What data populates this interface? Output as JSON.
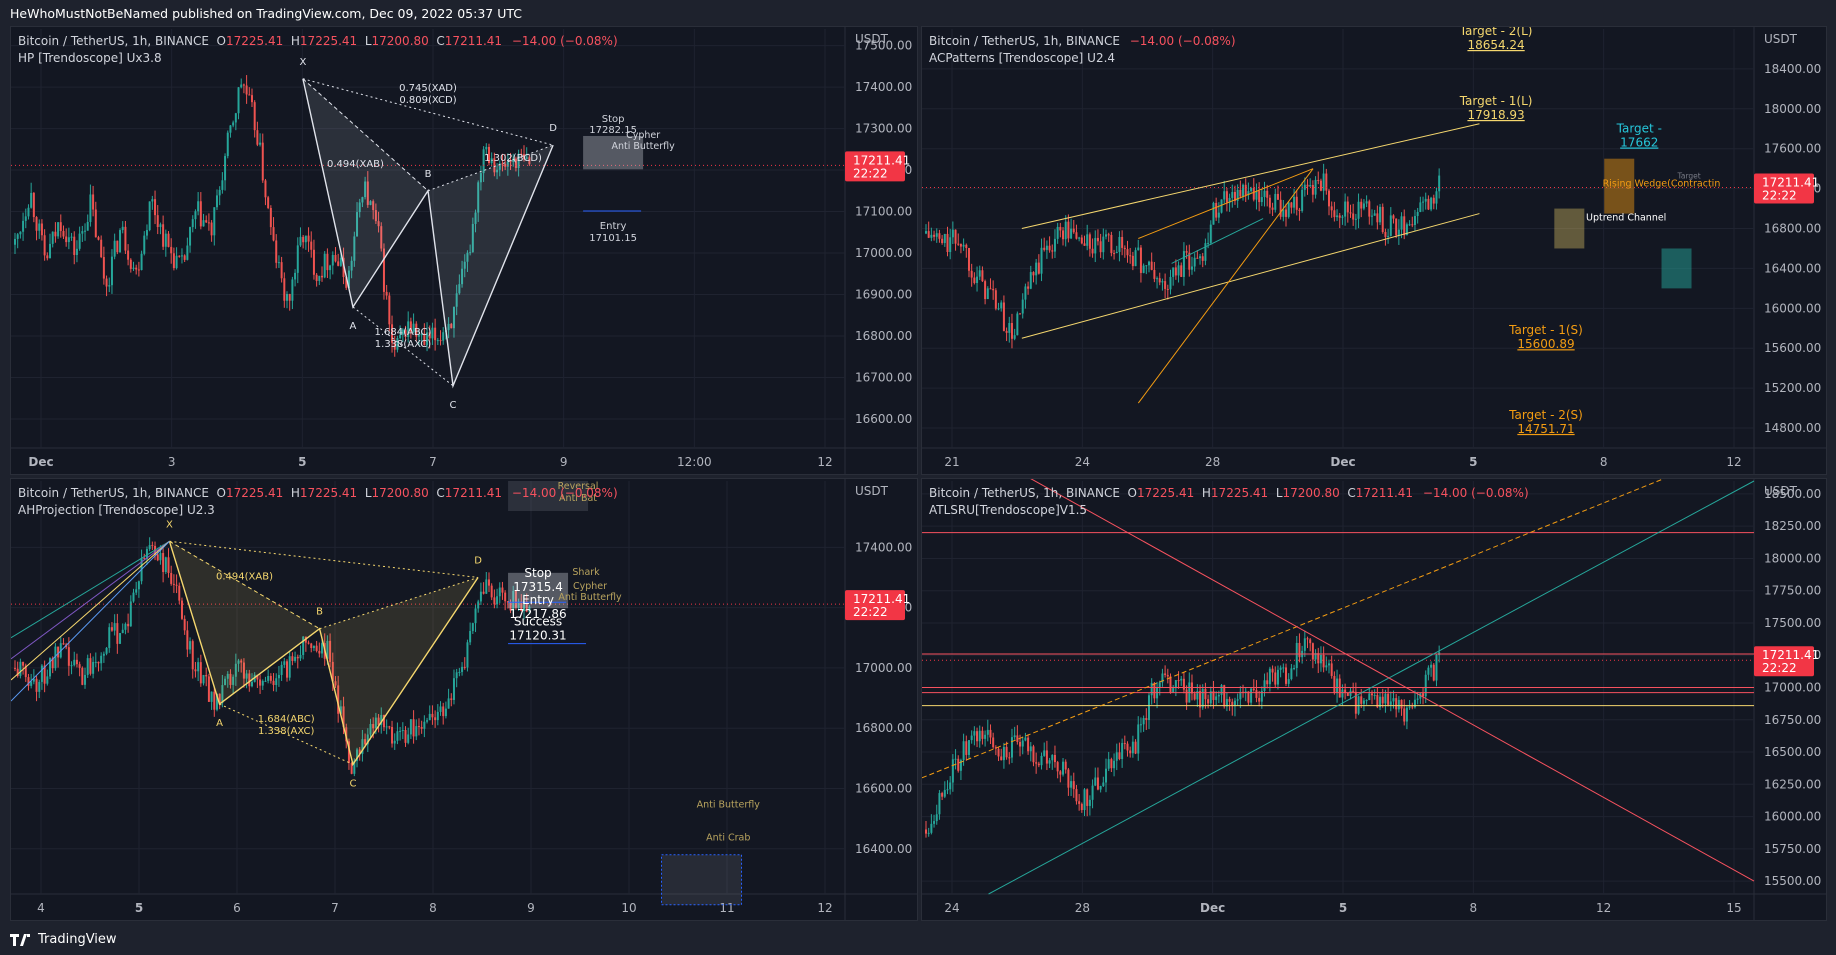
{
  "header": "HeWhoMustNotBeNamed published on TradingView.com, Dec 09, 2022 05:37 UTC",
  "footer_brand": "TradingView",
  "colors": {
    "up": "#26a69a",
    "down": "#ef5350",
    "bg": "#131722",
    "grid": "#1f2330",
    "axis": "#b2b5be",
    "price_label": "#f23645",
    "pattern_white": "#e0e3eb",
    "pattern_yellow": "#f5d76e",
    "orange": "#f39c12"
  },
  "panels": [
    {
      "symbol": "Bitcoin / TetherUS, 1h, BINANCE",
      "ohlc": [
        {
          "k": "O",
          "v": "17225.41"
        },
        {
          "k": "H",
          "v": "17225.41"
        },
        {
          "k": "L",
          "v": "17200.80"
        },
        {
          "k": "C",
          "v": "17211.41"
        }
      ],
      "change": "−14.00 (−0.08%)",
      "indicator": "HP [Trendoscope] Ux3.8",
      "currency": "USDT",
      "price_label": "17211.41",
      "countdown": "22:22",
      "chart_data": {
        "type": "candlestick",
        "ylim": [
          16530,
          17540
        ],
        "y_ticks": [
          "17500.00",
          "17400.00",
          "17300.00",
          "17200.00",
          "17100.00",
          "17000.00",
          "16900.00",
          "16800.00",
          "16700.00",
          "16600.00"
        ],
        "x_ticks": [
          "Dec",
          "3",
          "5",
          "7",
          "9",
          "12:00",
          "12"
        ],
        "close_path": [
          17020,
          17150,
          16980,
          17080,
          17000,
          17120,
          16920,
          17060,
          16950,
          17130,
          17020,
          16960,
          17100,
          17050,
          17250,
          17420,
          17290,
          17030,
          16870,
          17050,
          16950,
          17000,
          16930,
          17170,
          17050,
          16750,
          16830,
          16780,
          16800,
          16850,
          17000,
          17270,
          17200,
          17230,
          17211
        ],
        "pattern": {
          "points": [
            {
              "label": "X",
              "price": 17420,
              "t": 0.35
            },
            {
              "label": "A",
              "price": 16870,
              "t": 0.41
            },
            {
              "label": "B",
              "price": 17150,
              "t": 0.5
            },
            {
              "label": "C",
              "price": 16680,
              "t": 0.53
            },
            {
              "label": "D",
              "price": 17260,
              "t": 0.65
            }
          ],
          "ratios": [
            "0.745(XAD)",
            "0.809(XCD)",
            "0.494(XAB)",
            "1.302(BCD)",
            "1.684(ABC)",
            "1.338(AXC)"
          ],
          "stop_label": "Stop",
          "stop_value": "17282.15",
          "entry_label": "Entry",
          "entry_value": "17101.15",
          "tags": [
            "Cypher",
            "Anti Butterfly"
          ]
        }
      }
    },
    {
      "symbol": "Bitcoin / TetherUS, 1h, BINANCE",
      "ohlc": [],
      "change": "−14.00 (−0.08%)",
      "indicator": "ACPatterns [Trendoscope] U2.4",
      "currency": "USDT",
      "price_label": "17211.41",
      "countdown": "22:22",
      "chart_data": {
        "type": "candlestick",
        "ylim": [
          14600,
          18800
        ],
        "y_ticks": [
          "18400.00",
          "18000.00",
          "17600.00",
          "17200.00",
          "16800.00",
          "16400.00",
          "16000.00",
          "15600.00",
          "15200.00",
          "14800.00"
        ],
        "x_ticks": [
          "21",
          "24",
          "28",
          "Dec",
          "5",
          "8",
          "12"
        ],
        "close_path": [
          16750,
          16650,
          16700,
          16300,
          16100,
          15700,
          16200,
          16600,
          16800,
          16700,
          16600,
          16650,
          16550,
          16400,
          16200,
          16450,
          16500,
          17050,
          17200,
          17100,
          17050,
          17000,
          17100,
          17300,
          17000,
          16950,
          17000,
          16800,
          16850,
          17000,
          17211
        ],
        "targets": [
          {
            "label": "Target - 2(L)",
            "value": "18654.24"
          },
          {
            "label": "Target - 1(L)",
            "value": "17918.93"
          },
          {
            "label": "Target -",
            "value": "17662"
          },
          {
            "label": "Target - 1(S)",
            "value": "15600.89"
          },
          {
            "label": "Target - 2(S)",
            "value": "14751.71"
          }
        ],
        "pattern_labels": [
          "Rising Wedge(Contractin",
          "Uptrend Channel",
          "Target"
        ]
      }
    },
    {
      "symbol": "Bitcoin / TetherUS, 1h, BINANCE",
      "ohlc": [
        {
          "k": "O",
          "v": "17225.41"
        },
        {
          "k": "H",
          "v": "17225.41"
        },
        {
          "k": "L",
          "v": "17200.80"
        },
        {
          "k": "C",
          "v": "17211.41"
        }
      ],
      "change": "−14.00 (−0.08%)",
      "indicator": "AHProjection [Trendoscope] U2.3",
      "currency": "USDT",
      "price_label": "17211.41",
      "countdown": "22:22",
      "chart_data": {
        "type": "candlestick",
        "ylim": [
          16250,
          17620
        ],
        "y_ticks": [
          "17400.00",
          "17200.00",
          "17000.00",
          "16800.00",
          "16600.00",
          "16400.00"
        ],
        "x_ticks": [
          "4",
          "5",
          "6",
          "7",
          "8",
          "9",
          "10",
          "11",
          "12"
        ],
        "close_path": [
          17000,
          16950,
          17050,
          16980,
          17080,
          17150,
          17420,
          17300,
          17020,
          16880,
          17000,
          16950,
          16980,
          17100,
          17050,
          16680,
          16830,
          16780,
          16800,
          16850,
          17000,
          17270,
          17220,
          17211
        ],
        "pattern": {
          "points": [
            {
              "label": "X",
              "price": 17420,
              "t": 0.19
            },
            {
              "label": "A",
              "price": 16880,
              "t": 0.25
            },
            {
              "label": "B",
              "price": 17130,
              "t": 0.37
            },
            {
              "label": "C",
              "price": 16680,
              "t": 0.41
            },
            {
              "label": "D",
              "price": 17300,
              "t": 0.56
            }
          ],
          "ratios": [
            "0.494(XAB)",
            "1.684(ABC)",
            "1.338(AXC)"
          ],
          "stop_label": "Stop",
          "stop_value": "17315.4",
          "entry_label": "Entry",
          "entry_value": "17217.86",
          "success_label": "Success",
          "success_value": "17120.31",
          "tags": [
            "Reversal",
            "Anti Bat",
            "Shark",
            "Cypher",
            "Anti Butterfly",
            "Anti Butterfly",
            "Anti Crab"
          ]
        }
      }
    },
    {
      "symbol": "Bitcoin / TetherUS, 1h, BINANCE",
      "ohlc": [
        {
          "k": "O",
          "v": "17225.41"
        },
        {
          "k": "H",
          "v": "17225.41"
        },
        {
          "k": "L",
          "v": "17200.80"
        },
        {
          "k": "C",
          "v": "17211.41"
        }
      ],
      "change": "−14.00 (−0.08%)",
      "indicator": "ATLSRU[Trendoscope]V1.5",
      "currency": "USDT",
      "price_label": "17211.41",
      "countdown": "22:22",
      "chart_data": {
        "type": "candlestick",
        "ylim": [
          15400,
          18600
        ],
        "y_ticks": [
          "18500.00",
          "18250.00",
          "18000.00",
          "17750.00",
          "17500.00",
          "17250.00",
          "17000.00",
          "16750.00",
          "16500.00",
          "16250.00",
          "16000.00",
          "15750.00",
          "15500.00"
        ],
        "x_ticks": [
          "24",
          "28",
          "Dec",
          "5",
          "8",
          "12",
          "15"
        ],
        "close_path": [
          15900,
          16250,
          16500,
          16650,
          16500,
          16550,
          16450,
          16400,
          16100,
          16250,
          16500,
          16550,
          17000,
          17050,
          16950,
          16900,
          16950,
          16900,
          17050,
          17100,
          17400,
          17150,
          16900,
          16850,
          16900,
          16800,
          16950,
          17211
        ],
        "levels": [
          18200,
          17260,
          17000,
          16960,
          16860
        ]
      }
    }
  ]
}
